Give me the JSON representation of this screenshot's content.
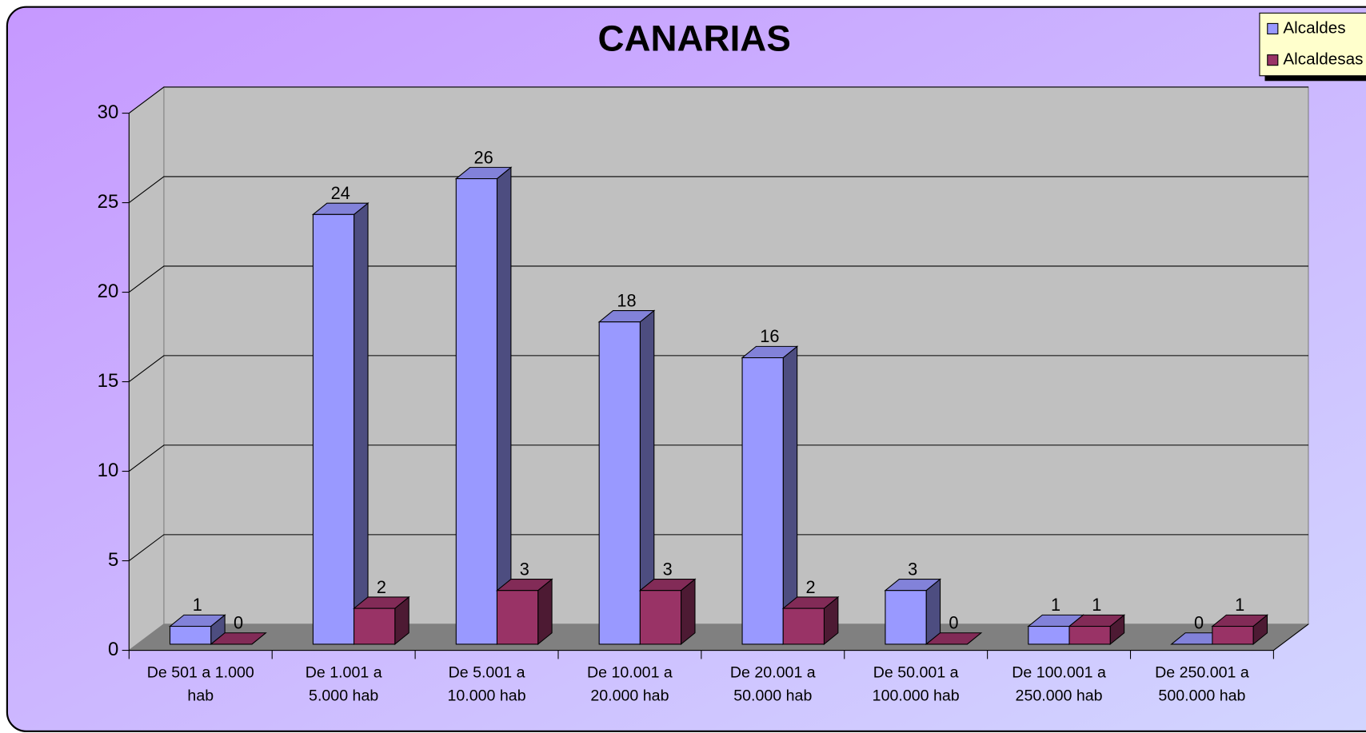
{
  "chart_data": {
    "type": "bar",
    "title": "CANARIAS",
    "categories": [
      "De 501 a 1.000 hab",
      "De 1.001 a 5.000 hab",
      "De 5.001 a 10.000 hab",
      "De 10.001 a 20.000 hab",
      "De 20.001 a 50.000 hab",
      "De 50.001 a 100.000 hab",
      "De 100.001 a 250.000 hab",
      "De 250.001 a 500.000 hab"
    ],
    "series": [
      {
        "name": "Alcaldes",
        "color": "#9999ff",
        "values": [
          1,
          24,
          26,
          18,
          16,
          3,
          1,
          0
        ]
      },
      {
        "name": "Alcaldesas",
        "color": "#993366",
        "values": [
          0,
          2,
          3,
          3,
          2,
          0,
          1,
          1
        ]
      }
    ],
    "ylim": [
      0,
      30
    ],
    "yticks": [
      0,
      5,
      10,
      15,
      20,
      25,
      30
    ],
    "grid": true,
    "legend": "top-right"
  }
}
